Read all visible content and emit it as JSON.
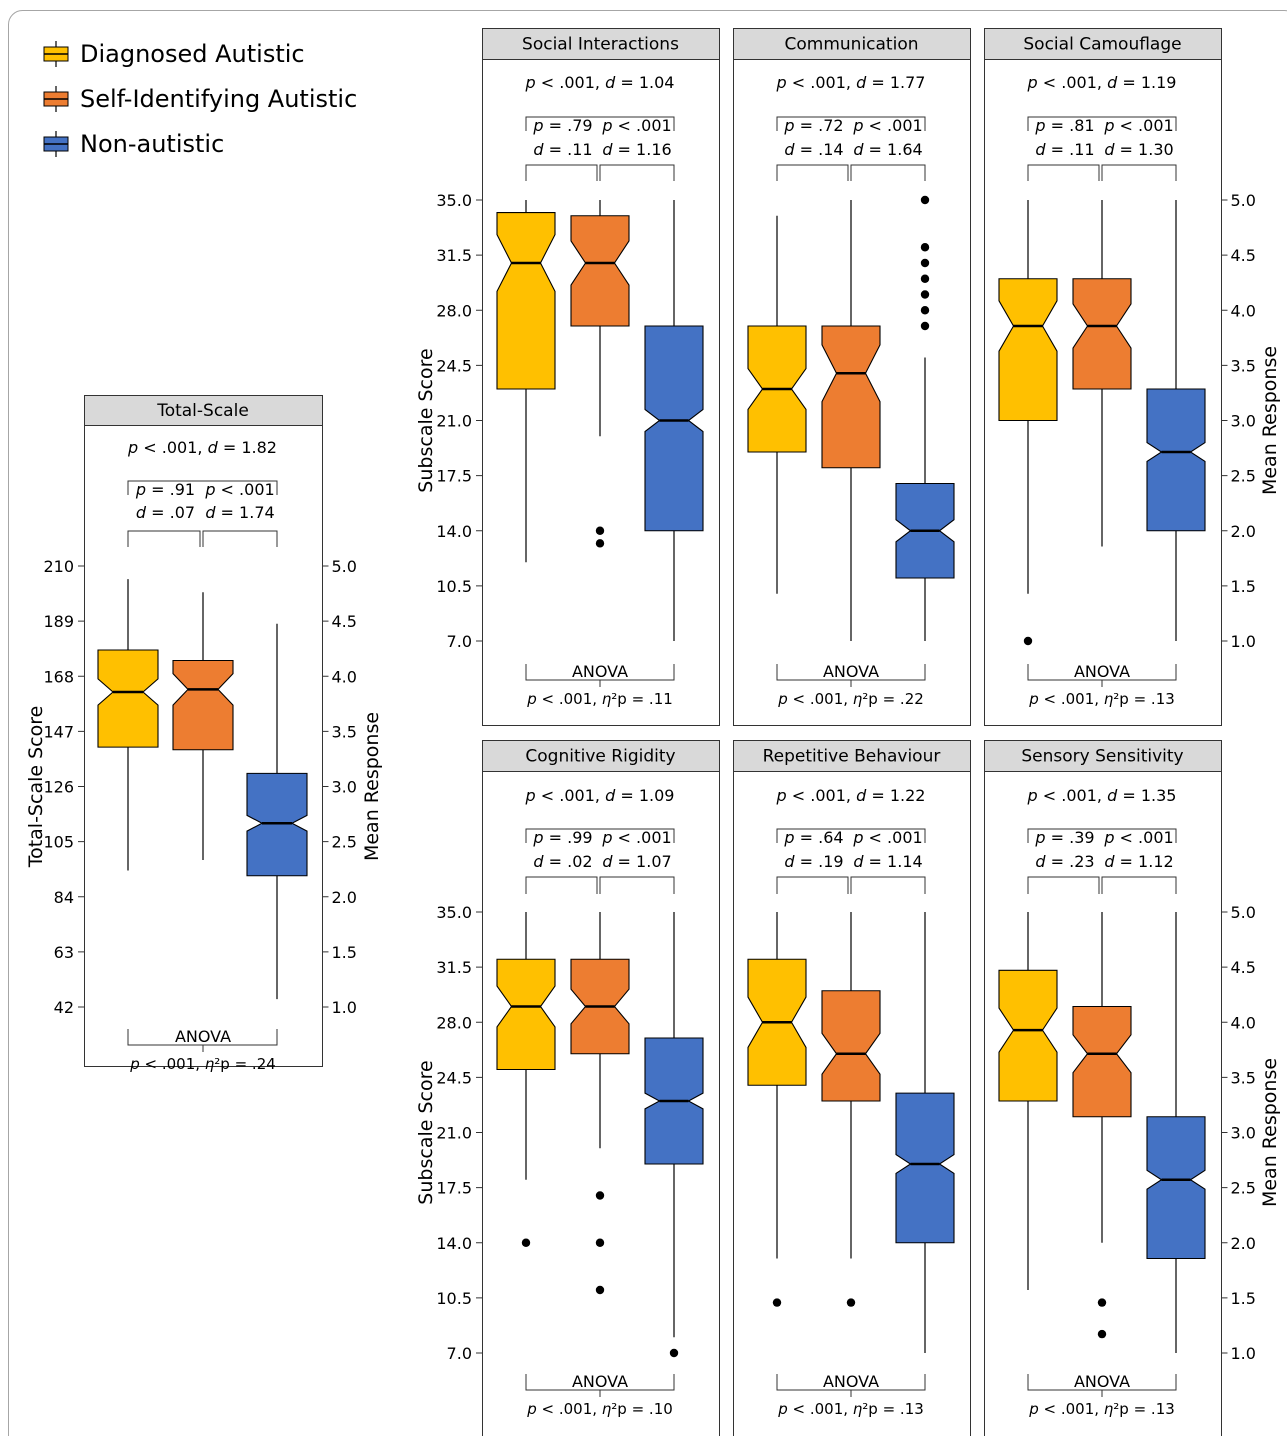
{
  "figure": {
    "legend": [
      {
        "label": "Diagnosed Autistic",
        "color": "#FFC000"
      },
      {
        "label": "Self-Identifying Autistic",
        "color": "#ED7D31"
      },
      {
        "label": "Non-autistic",
        "color": "#4472C4"
      }
    ]
  },
  "chart_data": [
    {
      "type": "boxplot",
      "title": "Total-Scale",
      "ylabel": "Total-Scale Score",
      "ylabel_right": "Mean Response",
      "yticks": [
        42,
        63,
        84,
        105,
        126,
        147,
        168,
        189,
        210
      ],
      "ytick_labels": [
        "42",
        "63",
        "84",
        "105",
        "126",
        "147",
        "168",
        "189",
        "210"
      ],
      "ylim": [
        42,
        210
      ],
      "y2ticks": [
        "1.0",
        "1.5",
        "2.0",
        "2.5",
        "3.0",
        "3.5",
        "4.0",
        "4.5",
        "5.0"
      ],
      "groups": [
        {
          "name": "Diagnosed Autistic",
          "whisker_low": 94,
          "q1": 141,
          "median": 162,
          "q3": 178,
          "whisker_high": 205,
          "notch_low": 157,
          "notch_high": 167,
          "outliers": []
        },
        {
          "name": "Self-Identifying Autistic",
          "whisker_low": 98,
          "q1": 140,
          "median": 163,
          "q3": 174,
          "whisker_high": 200,
          "notch_low": 157,
          "notch_high": 169,
          "outliers": []
        },
        {
          "name": "Non-autistic",
          "whisker_low": 45,
          "q1": 92,
          "median": 112,
          "q3": 131,
          "whisker_high": 188,
          "notch_low": 109,
          "notch_high": 115,
          "outliers": []
        }
      ],
      "top_comparison": {
        "p": "p < .001",
        "d": "d = 1.82"
      },
      "pair_comparisons": [
        {
          "p": "p = .91",
          "d": "d = .07"
        },
        {
          "p": "p < .001",
          "d": "d = 1.74"
        }
      ],
      "anova": {
        "label": "ANOVA",
        "stat": "p < .001, η²p = .24"
      }
    },
    {
      "type": "boxplot",
      "title": "Social Interactions",
      "ylabel": "Subscale Score",
      "yticks": [
        7.0,
        10.5,
        14.0,
        17.5,
        21.0,
        24.5,
        28.0,
        31.5,
        35.0
      ],
      "ytick_labels": [
        "7.0",
        "10.5",
        "14.0",
        "17.5",
        "21.0",
        "24.5",
        "28.0",
        "31.5",
        "35.0"
      ],
      "ylim": [
        7,
        35
      ],
      "groups": [
        {
          "name": "Diagnosed Autistic",
          "whisker_low": 12,
          "q1": 23,
          "median": 31,
          "q3": 34.2,
          "whisker_high": 35,
          "notch_low": 29.2,
          "notch_high": 32.8,
          "outliers": []
        },
        {
          "name": "Self-Identifying Autistic",
          "whisker_low": 20,
          "q1": 27,
          "median": 31,
          "q3": 34,
          "whisker_high": 35,
          "notch_low": 29.6,
          "notch_high": 32.4,
          "outliers": [
            14,
            13.2
          ]
        },
        {
          "name": "Non-autistic",
          "whisker_low": 7,
          "q1": 14,
          "median": 21,
          "q3": 27,
          "whisker_high": 35,
          "notch_low": 20.3,
          "notch_high": 21.7,
          "outliers": []
        }
      ],
      "top_comparison": {
        "p": "p < .001",
        "d": "d = 1.04"
      },
      "pair_comparisons": [
        {
          "p": "p = .79",
          "d": "d = .11"
        },
        {
          "p": "p < .001",
          "d": "d = 1.16"
        }
      ],
      "anova": {
        "label": "ANOVA",
        "stat": "p < .001, η²p = .11"
      }
    },
    {
      "type": "boxplot",
      "title": "Communication",
      "yticks": [
        7.0,
        10.5,
        14.0,
        17.5,
        21.0,
        24.5,
        28.0,
        31.5,
        35.0
      ],
      "ylim": [
        7,
        35
      ],
      "groups": [
        {
          "name": "Diagnosed Autistic",
          "whisker_low": 10,
          "q1": 19,
          "median": 23,
          "q3": 27,
          "whisker_high": 34,
          "notch_low": 21.7,
          "notch_high": 24.3,
          "outliers": []
        },
        {
          "name": "Self-Identifying Autistic",
          "whisker_low": 7,
          "q1": 18,
          "median": 24,
          "q3": 27,
          "whisker_high": 35,
          "notch_low": 22.2,
          "notch_high": 25.8,
          "outliers": []
        },
        {
          "name": "Non-autistic",
          "whisker_low": 7,
          "q1": 11,
          "median": 14,
          "q3": 17,
          "whisker_high": 25,
          "notch_low": 13.3,
          "notch_high": 14.7,
          "outliers": [
            27,
            28,
            29,
            30,
            31,
            32,
            35
          ]
        }
      ],
      "top_comparison": {
        "p": "p < .001",
        "d": "d = 1.77"
      },
      "pair_comparisons": [
        {
          "p": "p = .72",
          "d": "d = .14"
        },
        {
          "p": "p < .001",
          "d": "d = 1.64"
        }
      ],
      "anova": {
        "label": "ANOVA",
        "stat": "p < .001, η²p = .22"
      }
    },
    {
      "type": "boxplot",
      "title": "Social Camouflage",
      "ylabel_right": "Mean Response",
      "yticks": [
        7.0,
        10.5,
        14.0,
        17.5,
        21.0,
        24.5,
        28.0,
        31.5,
        35.0
      ],
      "ylim": [
        7,
        35
      ],
      "y2ticks": [
        "1.0",
        "1.5",
        "2.0",
        "2.5",
        "3.0",
        "3.5",
        "4.0",
        "4.5",
        "5.0"
      ],
      "groups": [
        {
          "name": "Diagnosed Autistic",
          "whisker_low": 10,
          "q1": 21,
          "median": 27,
          "q3": 30,
          "whisker_high": 35,
          "notch_low": 25.4,
          "notch_high": 28.6,
          "outliers": [
            7
          ]
        },
        {
          "name": "Self-Identifying Autistic",
          "whisker_low": 13,
          "q1": 23,
          "median": 27,
          "q3": 30,
          "whisker_high": 35,
          "notch_low": 25.6,
          "notch_high": 28.4,
          "outliers": []
        },
        {
          "name": "Non-autistic",
          "whisker_low": 7,
          "q1": 14,
          "median": 19,
          "q3": 23,
          "whisker_high": 35,
          "notch_low": 18.4,
          "notch_high": 19.6,
          "outliers": []
        }
      ],
      "top_comparison": {
        "p": "p < .001",
        "d": "d = 1.19"
      },
      "pair_comparisons": [
        {
          "p": "p = .81",
          "d": "d = .11"
        },
        {
          "p": "p < .001",
          "d": "d = 1.30"
        }
      ],
      "anova": {
        "label": "ANOVA",
        "stat": "p < .001, η²p = .13"
      }
    },
    {
      "type": "boxplot",
      "title": "Cognitive Rigidity",
      "ylabel": "Subscale Score",
      "yticks": [
        7.0,
        10.5,
        14.0,
        17.5,
        21.0,
        24.5,
        28.0,
        31.5,
        35.0
      ],
      "ytick_labels": [
        "7.0",
        "10.5",
        "14.0",
        "17.5",
        "21.0",
        "24.5",
        "28.0",
        "31.5",
        "35.0"
      ],
      "ylim": [
        7,
        35
      ],
      "groups": [
        {
          "name": "Diagnosed Autistic",
          "whisker_low": 18,
          "q1": 25,
          "median": 29,
          "q3": 32,
          "whisker_high": 35,
          "notch_low": 27.7,
          "notch_high": 30.3,
          "outliers": [
            14
          ]
        },
        {
          "name": "Self-Identifying Autistic",
          "whisker_low": 20,
          "q1": 26,
          "median": 29,
          "q3": 32,
          "whisker_high": 35,
          "notch_low": 27.9,
          "notch_high": 30.1,
          "outliers": [
            17,
            14,
            11
          ]
        },
        {
          "name": "Non-autistic",
          "whisker_low": 8,
          "q1": 19,
          "median": 23,
          "q3": 27,
          "whisker_high": 35,
          "notch_low": 22.5,
          "notch_high": 23.5,
          "outliers": [
            7
          ]
        }
      ],
      "top_comparison": {
        "p": "p < .001",
        "d": "d = 1.09"
      },
      "pair_comparisons": [
        {
          "p": "p = .99",
          "d": "d = .02"
        },
        {
          "p": "p < .001",
          "d": "d = 1.07"
        }
      ],
      "anova": {
        "label": "ANOVA",
        "stat": "p < .001, η²p = .10"
      }
    },
    {
      "type": "boxplot",
      "title": "Repetitive Behaviour",
      "yticks": [
        7.0,
        10.5,
        14.0,
        17.5,
        21.0,
        24.5,
        28.0,
        31.5,
        35.0
      ],
      "ylim": [
        7,
        35
      ],
      "groups": [
        {
          "name": "Diagnosed Autistic",
          "whisker_low": 13,
          "q1": 24,
          "median": 28,
          "q3": 32,
          "whisker_high": 35,
          "notch_low": 26.4,
          "notch_high": 29.6,
          "outliers": [
            10.2
          ]
        },
        {
          "name": "Self-Identifying Autistic",
          "whisker_low": 13,
          "q1": 23,
          "median": 26,
          "q3": 30,
          "whisker_high": 35,
          "notch_low": 24.7,
          "notch_high": 27.3,
          "outliers": [
            10.2
          ]
        },
        {
          "name": "Non-autistic",
          "whisker_low": 7,
          "q1": 14,
          "median": 19,
          "q3": 23.5,
          "whisker_high": 35,
          "notch_low": 18.4,
          "notch_high": 19.6,
          "outliers": []
        }
      ],
      "top_comparison": {
        "p": "p < .001",
        "d": "d = 1.22"
      },
      "pair_comparisons": [
        {
          "p": "p = .64",
          "d": "d = .19"
        },
        {
          "p": "p < .001",
          "d": "d = 1.14"
        }
      ],
      "anova": {
        "label": "ANOVA",
        "stat": "p < .001, η²p = .13"
      }
    },
    {
      "type": "boxplot",
      "title": "Sensory Sensitivity",
      "ylabel_right": "Mean Response",
      "yticks": [
        7.0,
        10.5,
        14.0,
        17.5,
        21.0,
        24.5,
        28.0,
        31.5,
        35.0
      ],
      "ylim": [
        7,
        35
      ],
      "y2ticks": [
        "1.0",
        "1.5",
        "2.0",
        "2.5",
        "3.0",
        "3.5",
        "4.0",
        "4.5",
        "5.0"
      ],
      "groups": [
        {
          "name": "Diagnosed Autistic",
          "whisker_low": 11,
          "q1": 23,
          "median": 27.5,
          "q3": 31.3,
          "whisker_high": 35,
          "notch_low": 26.1,
          "notch_high": 28.9,
          "outliers": []
        },
        {
          "name": "Self-Identifying Autistic",
          "whisker_low": 14,
          "q1": 22,
          "median": 26,
          "q3": 29,
          "whisker_high": 35,
          "notch_low": 24.8,
          "notch_high": 27.2,
          "outliers": [
            10.2,
            8.2
          ]
        },
        {
          "name": "Non-autistic",
          "whisker_low": 7,
          "q1": 13,
          "median": 18,
          "q3": 22,
          "whisker_high": 35,
          "notch_low": 17.4,
          "notch_high": 18.6,
          "outliers": []
        }
      ],
      "top_comparison": {
        "p": "p < .001",
        "d": "d = 1.35"
      },
      "pair_comparisons": [
        {
          "p": "p = .39",
          "d": "d = .23"
        },
        {
          "p": "p < .001",
          "d": "d = 1.12"
        }
      ],
      "anova": {
        "label": "ANOVA",
        "stat": "p < .001, η²p = .13"
      }
    }
  ]
}
